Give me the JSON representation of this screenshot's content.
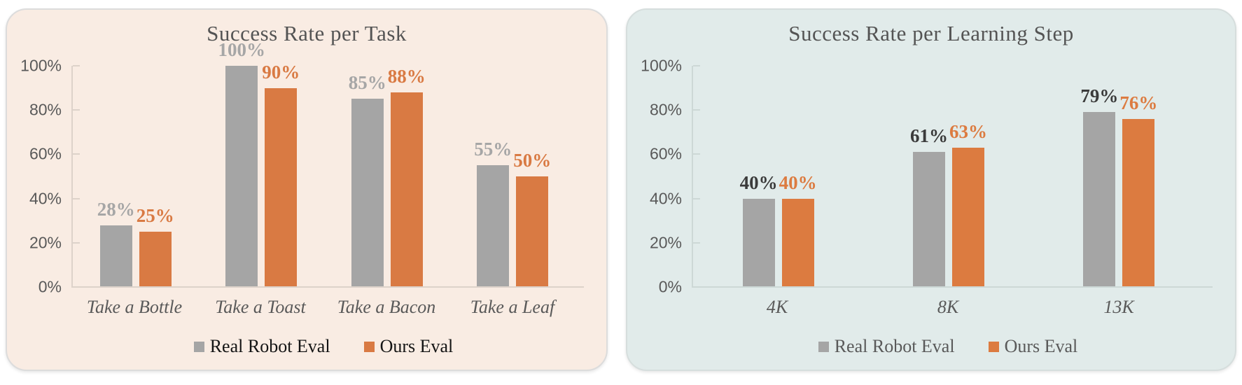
{
  "page": {
    "background": "#ffffff"
  },
  "chart_data": [
    {
      "type": "bar",
      "title": "Success Rate per Task",
      "categories": [
        "Take a Bottle",
        "Take a Toast",
        "Take a Bacon",
        "Take a Leaf"
      ],
      "series": [
        {
          "name": "Real Robot Eval",
          "values": [
            28,
            100,
            85,
            55
          ],
          "labels": [
            "28%",
            "100%",
            "85%",
            "55%"
          ],
          "bar_color": "#a5a5a5",
          "label_color": "#a6a6a6"
        },
        {
          "name": "Ours Eval",
          "values": [
            25,
            90,
            88,
            50
          ],
          "labels": [
            "25%",
            "90%",
            "88%",
            "50%"
          ],
          "bar_color": "#d97a43",
          "label_color": "#d97a43"
        }
      ],
      "y_axis": {
        "ticks": [
          "100%",
          "80%",
          "60%",
          "40%",
          "20%",
          "0%"
        ],
        "min": 0,
        "max": 100
      },
      "ylim": [
        0,
        100
      ],
      "grid": false,
      "legend": {
        "position": "bottom",
        "text_color": "#141414"
      },
      "colors": {
        "panel_bg": "#f9ece3",
        "panel_border": "#dcdcdc",
        "title": "#545454",
        "axis_text": "#595959",
        "axis_line": "#ddd2ca",
        "category_text": "#595959"
      }
    },
    {
      "type": "bar",
      "title": "Success Rate per Learning Step",
      "categories": [
        "4K",
        "8K",
        "13K"
      ],
      "series": [
        {
          "name": "Real Robot Eval",
          "values": [
            40,
            61,
            79
          ],
          "labels": [
            "40%",
            "61%",
            "79%"
          ],
          "bar_color": "#a5a5a5",
          "label_color": "#3b3b3b"
        },
        {
          "name": "Ours Eval",
          "values": [
            40,
            63,
            76
          ],
          "labels": [
            "40%",
            "63%",
            "76%"
          ],
          "bar_color": "#dc7b40",
          "label_color": "#dc7b40"
        }
      ],
      "y_axis": {
        "ticks": [
          "100%",
          "80%",
          "60%",
          "40%",
          "20%",
          "0%"
        ],
        "min": 0,
        "max": 100
      },
      "ylim": [
        0,
        100
      ],
      "grid": false,
      "legend": {
        "position": "bottom",
        "text_color": "#595959"
      },
      "colors": {
        "panel_bg": "#e1ebea",
        "panel_border": "#d6dedd",
        "title": "#545454",
        "axis_text": "#595959",
        "axis_line": "#cdd8d6",
        "category_text": "#595959"
      }
    }
  ]
}
